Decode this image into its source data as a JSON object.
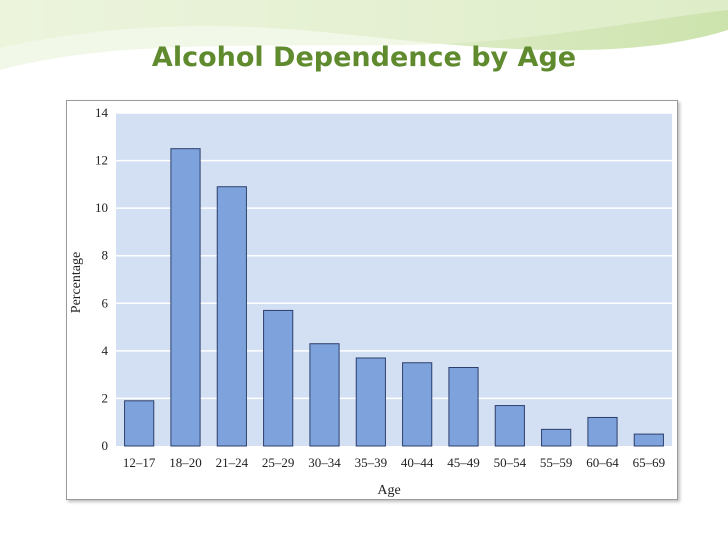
{
  "slide": {
    "title": "Alcohol Dependence by Age"
  },
  "colors": {
    "title": "#5f8a2e",
    "plot_background": "#d3e0f3",
    "bar_fill": "#7ea3dc",
    "bar_stroke": "#2c3e6b",
    "gridline": "#ffffff"
  },
  "chart_data": {
    "type": "bar",
    "title": "",
    "xlabel": "Age",
    "ylabel": "Percentage",
    "ylim": [
      0,
      14
    ],
    "yticks": [
      0,
      2,
      4,
      6,
      8,
      10,
      12,
      14
    ],
    "grid": true,
    "categories": [
      "12–17",
      "18–20",
      "21–24",
      "25–29",
      "30–34",
      "35–39",
      "40–44",
      "45–49",
      "50–54",
      "55–59",
      "60–64",
      "65–69"
    ],
    "values": [
      1.9,
      12.5,
      10.9,
      5.7,
      4.3,
      3.7,
      3.5,
      3.3,
      1.7,
      0.7,
      1.2,
      0.5
    ]
  }
}
